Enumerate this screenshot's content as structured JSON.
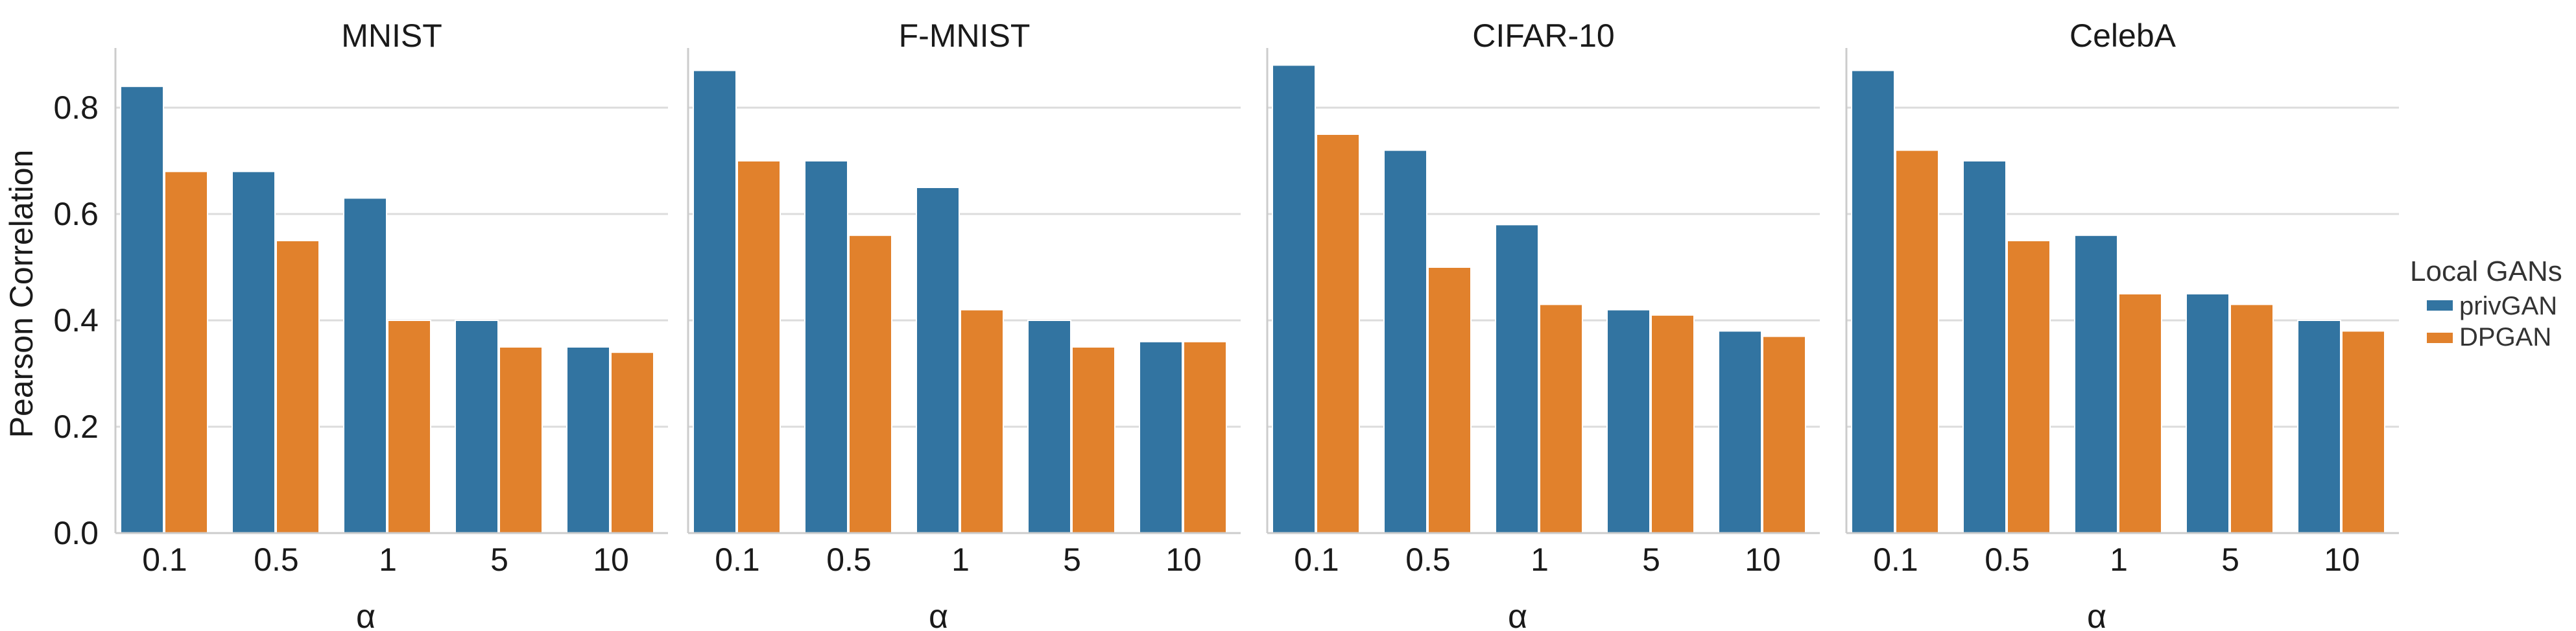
{
  "chart_data": {
    "type": "bar",
    "ylabel": "Pearson Correlation",
    "xlabel": "α",
    "ylim": [
      0,
      0.9
    ],
    "yticks": [
      "0.0",
      "0.2",
      "0.4",
      "0.6",
      "0.8"
    ],
    "categories": [
      "0.1",
      "0.5",
      "1",
      "5",
      "10"
    ],
    "grid": "horizontal",
    "legend": {
      "title": "Local GANs",
      "position": "right",
      "entries": [
        "privGAN",
        "DPGAN"
      ]
    },
    "colors": {
      "privGAN": "#3274a1",
      "DPGAN": "#e1812c"
    },
    "panels": [
      {
        "title": "MNIST",
        "series": [
          {
            "name": "privGAN",
            "values": [
              0.84,
              0.68,
              0.63,
              0.4,
              0.35
            ]
          },
          {
            "name": "DPGAN",
            "values": [
              0.68,
              0.55,
              0.4,
              0.35,
              0.34
            ]
          }
        ]
      },
      {
        "title": "F-MNIST",
        "series": [
          {
            "name": "privGAN",
            "values": [
              0.87,
              0.7,
              0.65,
              0.4,
              0.36
            ]
          },
          {
            "name": "DPGAN",
            "values": [
              0.7,
              0.56,
              0.42,
              0.35,
              0.36
            ]
          }
        ]
      },
      {
        "title": "CIFAR-10",
        "series": [
          {
            "name": "privGAN",
            "values": [
              0.88,
              0.72,
              0.58,
              0.42,
              0.38
            ]
          },
          {
            "name": "DPGAN",
            "values": [
              0.75,
              0.5,
              0.43,
              0.41,
              0.37
            ]
          }
        ]
      },
      {
        "title": "CelebA",
        "series": [
          {
            "name": "privGAN",
            "values": [
              0.87,
              0.7,
              0.56,
              0.45,
              0.4
            ]
          },
          {
            "name": "DPGAN",
            "values": [
              0.72,
              0.55,
              0.45,
              0.43,
              0.38
            ]
          }
        ]
      }
    ]
  }
}
